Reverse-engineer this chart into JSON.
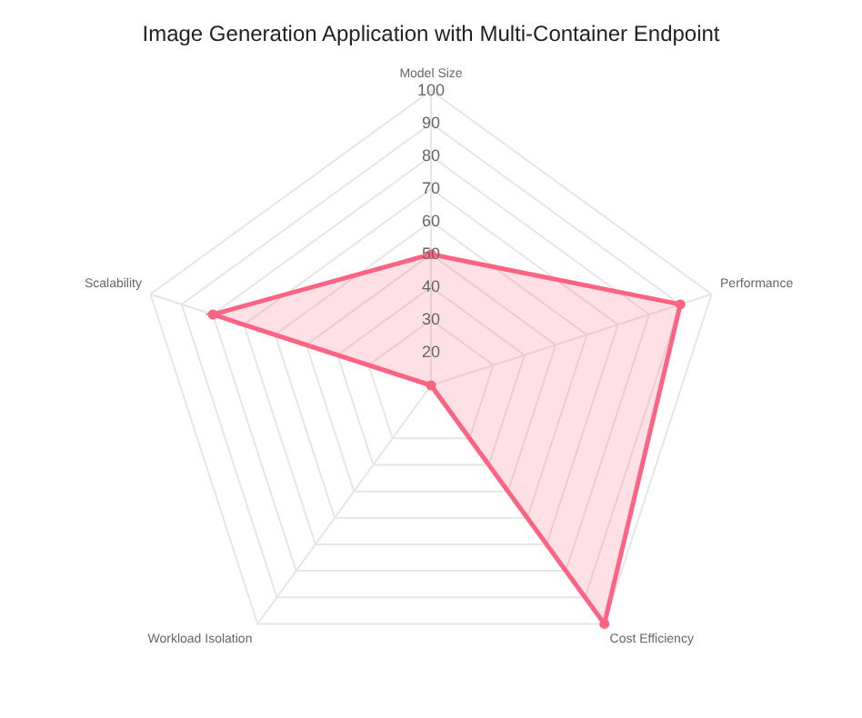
{
  "chart_data": {
    "type": "radar",
    "title": "Image Generation Application with Multi-Container Endpoint",
    "categories": [
      "Model Size",
      "Performance",
      "Cost Efficiency",
      "Workload Isolation",
      "Scalability"
    ],
    "series": [
      {
        "color": "#ff6384",
        "values": [
          50,
          90,
          100,
          10,
          80
        ]
      }
    ],
    "ylim": [
      10,
      100
    ],
    "yticks": [
      20,
      30,
      40,
      50,
      60,
      70,
      80,
      90,
      100
    ],
    "grid": true,
    "legend": false,
    "marker": "circle"
  }
}
